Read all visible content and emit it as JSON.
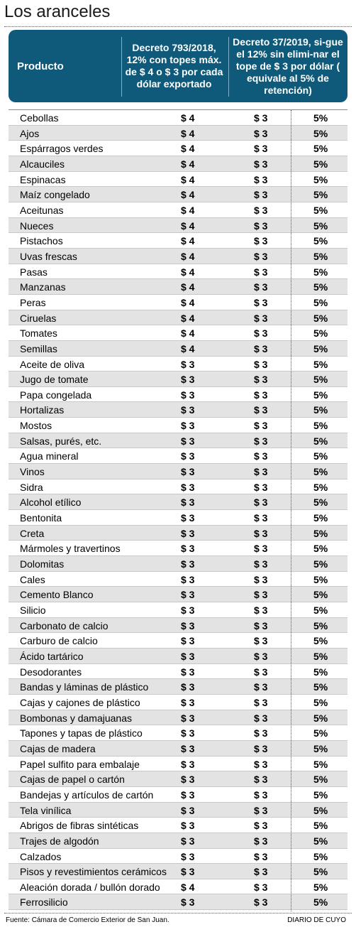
{
  "title": "Los aranceles",
  "header": {
    "col_product": "Producto",
    "col_decree1": "Decreto 793/2018, 12% con topes máx. de $ 4 o $ 3 por cada dólar exportado",
    "col_decree2": "Decreto 37/2019, si-gue el 12% sin elimi-nar el tope de $ 3 por dólar ( equivale al 5% de retención)"
  },
  "rows": [
    {
      "product": "Cebollas",
      "tope_2018": "$ 4",
      "tope_2019": "$ 3",
      "retencion": "5%"
    },
    {
      "product": "Ajos",
      "tope_2018": "$ 4",
      "tope_2019": "$ 3",
      "retencion": "5%"
    },
    {
      "product": "Espárragos verdes",
      "tope_2018": "$ 4",
      "tope_2019": "$ 3",
      "retencion": "5%"
    },
    {
      "product": "Alcauciles",
      "tope_2018": "$ 4",
      "tope_2019": "$ 3",
      "retencion": "5%"
    },
    {
      "product": "Espinacas",
      "tope_2018": "$ 4",
      "tope_2019": "$ 3",
      "retencion": "5%"
    },
    {
      "product": "Maíz congelado",
      "tope_2018": "$ 4",
      "tope_2019": "$ 3",
      "retencion": "5%"
    },
    {
      "product": "Aceitunas",
      "tope_2018": "$ 4",
      "tope_2019": "$ 3",
      "retencion": "5%"
    },
    {
      "product": "Nueces",
      "tope_2018": "$ 4",
      "tope_2019": "$ 3",
      "retencion": "5%"
    },
    {
      "product": "Pistachos",
      "tope_2018": "$ 4",
      "tope_2019": "$ 3",
      "retencion": "5%"
    },
    {
      "product": "Uvas frescas",
      "tope_2018": "$ 4",
      "tope_2019": "$ 3",
      "retencion": "5%"
    },
    {
      "product": "Pasas",
      "tope_2018": "$ 4",
      "tope_2019": "$ 3",
      "retencion": "5%"
    },
    {
      "product": "Manzanas",
      "tope_2018": "$ 4",
      "tope_2019": "$ 3",
      "retencion": "5%"
    },
    {
      "product": "Peras",
      "tope_2018": "$ 4",
      "tope_2019": "$ 3",
      "retencion": "5%"
    },
    {
      "product": "Ciruelas",
      "tope_2018": "$ 4",
      "tope_2019": "$ 3",
      "retencion": "5%"
    },
    {
      "product": "Tomates",
      "tope_2018": "$ 4",
      "tope_2019": "$ 3",
      "retencion": "5%"
    },
    {
      "product": "Semillas",
      "tope_2018": "$ 4",
      "tope_2019": "$ 3",
      "retencion": "5%"
    },
    {
      "product": "Aceite de oliva",
      "tope_2018": "$ 3",
      "tope_2019": "$ 3",
      "retencion": "5%"
    },
    {
      "product": "Jugo de tomate",
      "tope_2018": "$ 3",
      "tope_2019": "$ 3",
      "retencion": "5%"
    },
    {
      "product": "Papa congelada",
      "tope_2018": "$ 3",
      "tope_2019": "$ 3",
      "retencion": "5%"
    },
    {
      "product": "Hortalizas",
      "tope_2018": "$ 3",
      "tope_2019": "$ 3",
      "retencion": "5%"
    },
    {
      "product": "Mostos",
      "tope_2018": "$ 3",
      "tope_2019": "$ 3",
      "retencion": "5%"
    },
    {
      "product": "Salsas, purés, etc.",
      "tope_2018": "$ 3",
      "tope_2019": "$ 3",
      "retencion": "5%"
    },
    {
      "product": "Agua mineral",
      "tope_2018": "$ 3",
      "tope_2019": "$ 3",
      "retencion": "5%"
    },
    {
      "product": "Vinos",
      "tope_2018": "$ 3",
      "tope_2019": "$ 3",
      "retencion": "5%"
    },
    {
      "product": "Sidra",
      "tope_2018": "$ 3",
      "tope_2019": "$ 3",
      "retencion": "5%"
    },
    {
      "product": "Alcohol etílico",
      "tope_2018": "$ 3",
      "tope_2019": "$ 3",
      "retencion": "5%"
    },
    {
      "product": "Bentonita",
      "tope_2018": "$ 3",
      "tope_2019": "$ 3",
      "retencion": "5%"
    },
    {
      "product": "Creta",
      "tope_2018": "$ 3",
      "tope_2019": "$ 3",
      "retencion": "5%"
    },
    {
      "product": "Mármoles y travertinos",
      "tope_2018": "$ 3",
      "tope_2019": "$ 3",
      "retencion": "5%"
    },
    {
      "product": "Dolomitas",
      "tope_2018": "$ 3",
      "tope_2019": "$ 3",
      "retencion": "5%"
    },
    {
      "product": "Cales",
      "tope_2018": "$ 3",
      "tope_2019": "$ 3",
      "retencion": "5%"
    },
    {
      "product": "Cemento Blanco",
      "tope_2018": "$ 3",
      "tope_2019": "$ 3",
      "retencion": "5%"
    },
    {
      "product": "Silicio",
      "tope_2018": "$ 3",
      "tope_2019": "$ 3",
      "retencion": "5%"
    },
    {
      "product": "Carbonato de calcio",
      "tope_2018": "$ 3",
      "tope_2019": "$ 3",
      "retencion": "5%"
    },
    {
      "product": "Carburo de calcio",
      "tope_2018": "$ 3",
      "tope_2019": "$ 3",
      "retencion": "5%"
    },
    {
      "product": "Ácido tartárico",
      "tope_2018": "$ 3",
      "tope_2019": "$ 3",
      "retencion": "5%"
    },
    {
      "product": "Desodorantes",
      "tope_2018": "$ 3",
      "tope_2019": "$ 3",
      "retencion": "5%"
    },
    {
      "product": "Bandas y láminas de plástico",
      "tope_2018": "$ 3",
      "tope_2019": "$ 3",
      "retencion": "5%"
    },
    {
      "product": "Cajas y cajones de plástico",
      "tope_2018": "$ 3",
      "tope_2019": "$ 3",
      "retencion": "5%"
    },
    {
      "product": "Bombonas y damajuanas",
      "tope_2018": "$ 3",
      "tope_2019": "$ 3",
      "retencion": "5%"
    },
    {
      "product": "Tapones y tapas de plástico",
      "tope_2018": "$ 3",
      "tope_2019": "$ 3",
      "retencion": "5%"
    },
    {
      "product": "Cajas de madera",
      "tope_2018": "$ 3",
      "tope_2019": "$ 3",
      "retencion": "5%"
    },
    {
      "product": "Papel sulfito para embalaje",
      "tope_2018": "$ 3",
      "tope_2019": "$ 3",
      "retencion": "5%"
    },
    {
      "product": "Cajas de papel o cartón",
      "tope_2018": "$ 3",
      "tope_2019": "$ 3",
      "retencion": "5%"
    },
    {
      "product": "Bandejas y artículos de cartón",
      "tope_2018": "$ 3",
      "tope_2019": "$ 3",
      "retencion": "5%"
    },
    {
      "product": "Tela vinílica",
      "tope_2018": "$ 3",
      "tope_2019": "$ 3",
      "retencion": "5%"
    },
    {
      "product": "Abrigos de fibras sintéticas",
      "tope_2018": "$ 3",
      "tope_2019": "$ 3",
      "retencion": "5%"
    },
    {
      "product": "Trajes de algodón",
      "tope_2018": "$ 3",
      "tope_2019": "$ 3",
      "retencion": "5%"
    },
    {
      "product": "Calzados",
      "tope_2018": "$ 3",
      "tope_2019": "$ 3",
      "retencion": "5%"
    },
    {
      "product": "Pisos y revestimientos cerámicos",
      "tope_2018": "$ 3",
      "tope_2019": "$ 3",
      "retencion": "5%"
    },
    {
      "product": "Aleación dorada / bullón dorado",
      "tope_2018": "$ 4",
      "tope_2019": "$ 3",
      "retencion": "5%"
    },
    {
      "product": "Ferrosilicio",
      "tope_2018": "$ 3",
      "tope_2019": "$ 3",
      "retencion": "5%"
    }
  ],
  "footer": {
    "source": "Fuente: Cámara de Comercio Exterior de San Juan.",
    "brand": "DIARIO DE CUYO"
  },
  "colors": {
    "header_bg": "#0f5a7a",
    "alt_row": "#e3e3e3"
  }
}
